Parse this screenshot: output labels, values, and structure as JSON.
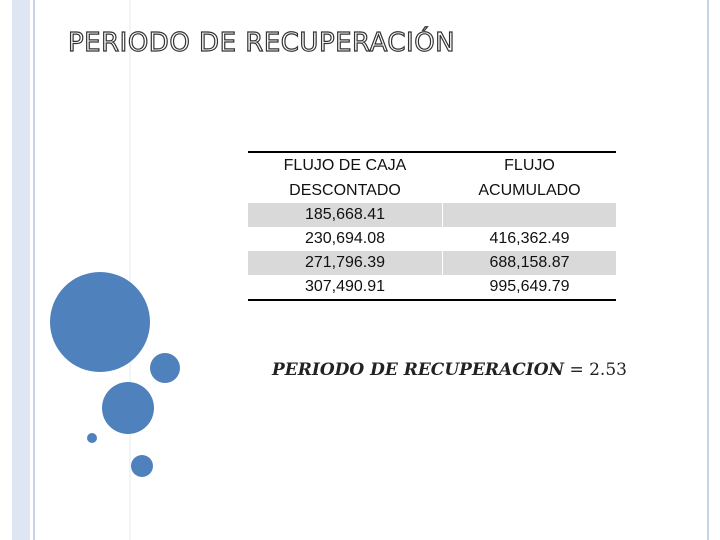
{
  "title": "PERIODO DE RECUPERACIÓN",
  "table": {
    "headers": [
      [
        "FLUJO DE CAJA",
        "DESCONTADO"
      ],
      [
        "FLUJO",
        "ACUMULADO"
      ]
    ],
    "rows": [
      {
        "flujo": "185,668.41"
      },
      {
        "flujo": "230,694.08",
        "acumulado": "416,362.49"
      },
      {
        "flujo": "271,796.39",
        "acumulado": "688,158.87"
      },
      {
        "flujo": "307,490.91",
        "acumulado": "995,649.79"
      }
    ]
  },
  "formula": {
    "label": "PERIODO DE RECUPERACION",
    "operator": "=",
    "value": 2.53
  }
}
